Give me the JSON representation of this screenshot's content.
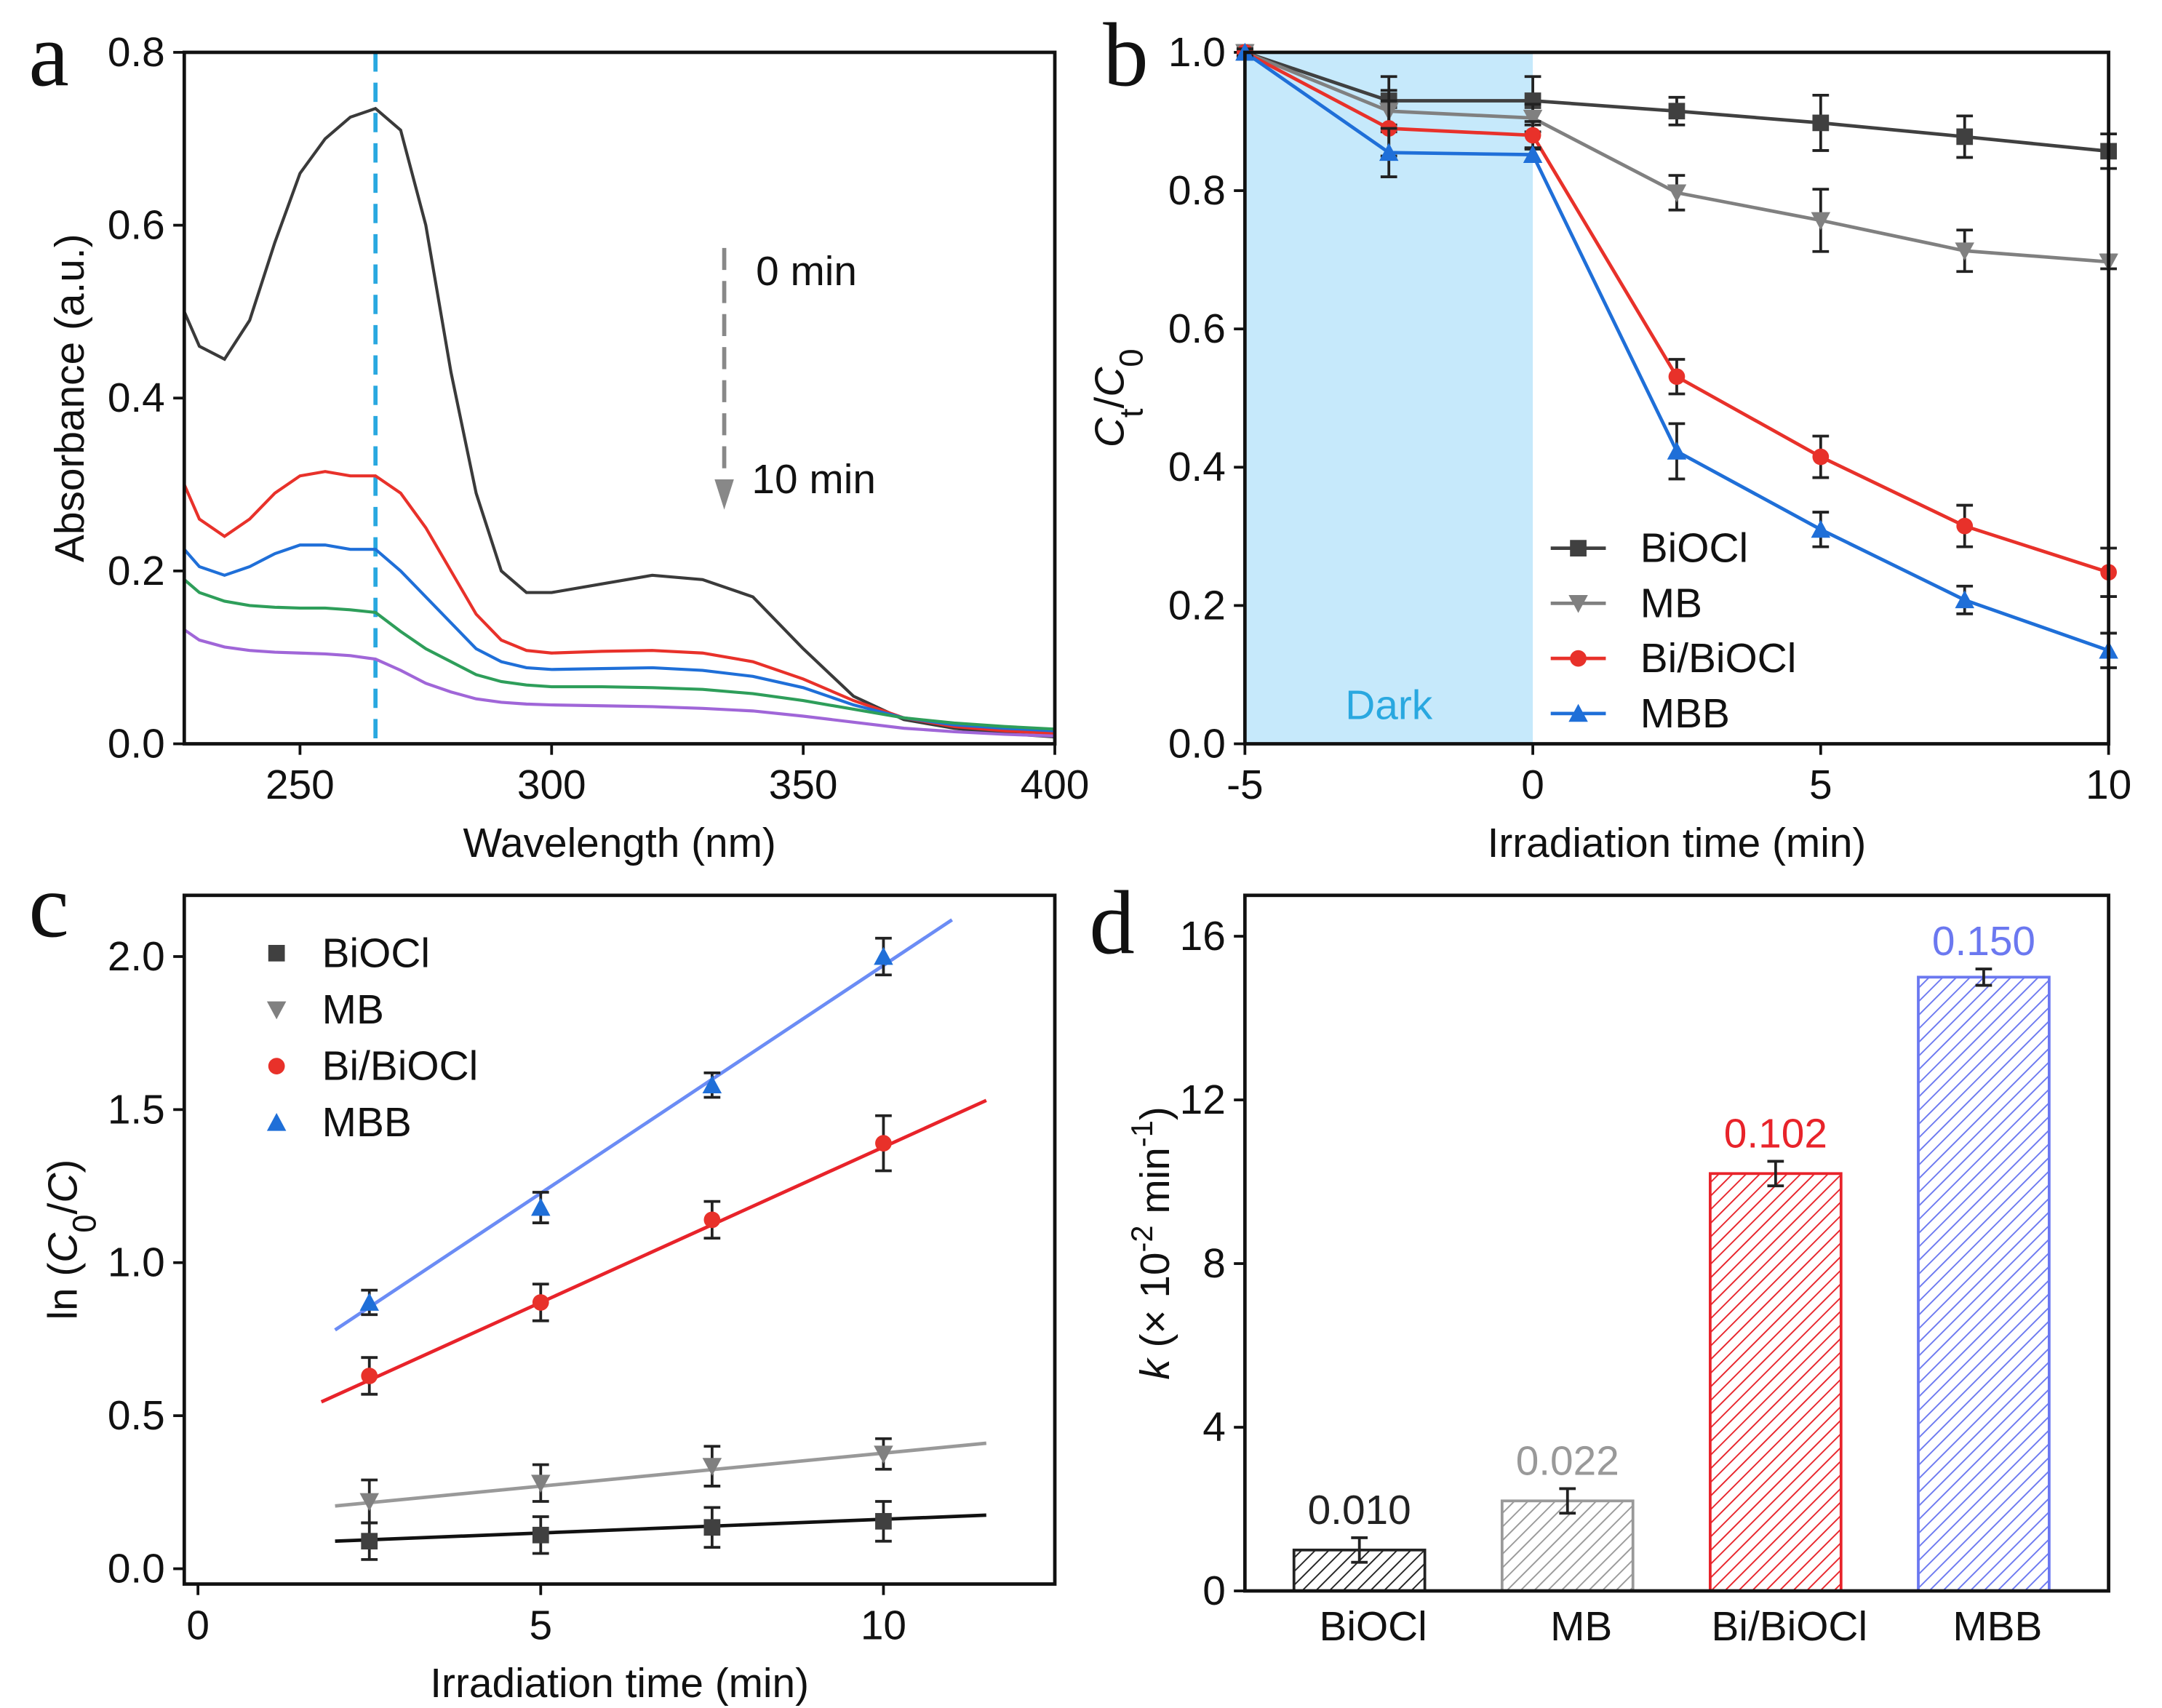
{
  "chart_data": [
    {
      "type": "line",
      "panel_label": "a",
      "xlabel": "Wavelength (nm)",
      "ylabel": "Absorbance (a.u.)",
      "x": [
        227,
        230,
        235,
        240,
        245,
        250,
        255,
        260,
        265,
        270,
        275,
        280,
        285,
        290,
        295,
        300,
        310,
        320,
        330,
        340,
        350,
        360,
        370,
        380,
        390,
        400
      ],
      "series": [
        {
          "color": "#3a3a3a",
          "values": [
            0.5,
            0.46,
            0.445,
            0.49,
            0.58,
            0.66,
            0.7,
            0.725,
            0.735,
            0.71,
            0.6,
            0.43,
            0.29,
            0.2,
            0.175,
            0.175,
            0.185,
            0.195,
            0.19,
            0.17,
            0.11,
            0.055,
            0.028,
            0.018,
            0.012,
            0.008
          ]
        },
        {
          "color": "#e8312a",
          "values": [
            0.3,
            0.26,
            0.24,
            0.26,
            0.29,
            0.31,
            0.315,
            0.31,
            0.31,
            0.29,
            0.25,
            0.2,
            0.15,
            0.12,
            0.108,
            0.105,
            0.107,
            0.108,
            0.105,
            0.095,
            0.075,
            0.05,
            0.03,
            0.02,
            0.015,
            0.012
          ]
        },
        {
          "color": "#1f6fd8",
          "values": [
            0.225,
            0.205,
            0.195,
            0.205,
            0.22,
            0.23,
            0.23,
            0.225,
            0.225,
            0.2,
            0.17,
            0.14,
            0.11,
            0.095,
            0.088,
            0.086,
            0.087,
            0.088,
            0.085,
            0.078,
            0.065,
            0.045,
            0.03,
            0.022,
            0.018,
            0.015
          ]
        },
        {
          "color": "#2e9e5a",
          "values": [
            0.19,
            0.175,
            0.165,
            0.16,
            0.158,
            0.157,
            0.157,
            0.155,
            0.152,
            0.13,
            0.11,
            0.095,
            0.08,
            0.072,
            0.068,
            0.066,
            0.066,
            0.065,
            0.063,
            0.058,
            0.05,
            0.04,
            0.03,
            0.024,
            0.02,
            0.017
          ]
        },
        {
          "color": "#a066d8",
          "values": [
            0.132,
            0.12,
            0.112,
            0.108,
            0.106,
            0.105,
            0.104,
            0.102,
            0.098,
            0.085,
            0.07,
            0.06,
            0.052,
            0.048,
            0.046,
            0.045,
            0.044,
            0.043,
            0.041,
            0.038,
            0.032,
            0.025,
            0.018,
            0.014,
            0.011,
            0.009
          ]
        }
      ],
      "xlim": [
        227,
        400
      ],
      "xticks": [
        250,
        300,
        350,
        400
      ],
      "ylim": [
        0,
        0.8
      ],
      "yticks": [
        {
          "value": 0,
          "label": "0.0"
        },
        0.2,
        0.4,
        0.6,
        0.8
      ],
      "vline": 265,
      "vline_color": "#29a8e0",
      "annotations": [
        "0 min",
        "10 min"
      ]
    },
    {
      "type": "line",
      "panel_label": "b",
      "xlabel": "Irradiation time (min)",
      "ylabel": [
        {
          "text": "C",
          "italic": true
        },
        {
          "text": "t",
          "sub": true
        },
        {
          "text": "/"
        },
        {
          "text": "C",
          "italic": true
        },
        {
          "text": "0",
          "sub": true
        }
      ],
      "x": [
        -5,
        -2.5,
        0,
        2.5,
        5,
        7.5,
        10
      ],
      "series": [
        {
          "name": "BiOCl",
          "color": "#404040",
          "marker": "square",
          "values": [
            1.0,
            0.93,
            0.93,
            0.915,
            0.898,
            0.878,
            0.857
          ],
          "errors": [
            0.005,
            0.035,
            0.035,
            0.02,
            0.04,
            0.03,
            0.025
          ]
        },
        {
          "name": "MB",
          "color": "#808080",
          "marker": "triangle-down",
          "values": [
            1.0,
            0.915,
            0.905,
            0.797,
            0.757,
            0.713,
            0.697
          ],
          "errors": [
            0.005,
            0.03,
            0.02,
            0.025,
            0.045,
            0.03,
            0.01
          ]
        },
        {
          "name": "Bi/BiOCl",
          "color": "#e8312a",
          "marker": "circle",
          "values": [
            1.0,
            0.89,
            0.88,
            0.531,
            0.415,
            0.315,
            0.248
          ],
          "errors": [
            0.005,
            0.04,
            0.02,
            0.025,
            0.03,
            0.03,
            0.035
          ]
        },
        {
          "name": "MBB",
          "color": "#1f6fd8",
          "marker": "triangle-up",
          "values": [
            1.0,
            0.855,
            0.852,
            0.423,
            0.31,
            0.208,
            0.135
          ],
          "errors": [
            0.005,
            0.035,
            0.01,
            0.04,
            0.025,
            0.02,
            0.025
          ]
        }
      ],
      "xlim": [
        -5,
        10
      ],
      "xticks": [
        -5,
        0,
        5,
        10
      ],
      "ylim": [
        0,
        1
      ],
      "yticks": [
        {
          "value": 0,
          "label": "0.0"
        },
        0.2,
        0.4,
        0.6,
        0.8,
        {
          "value": 1,
          "label": "1.0"
        }
      ],
      "shade": [
        -5,
        0
      ],
      "shade_label": "Dark",
      "shade_color": "#c6e9fb",
      "shade_label_color": "#29a8e0",
      "legend": "lower right"
    },
    {
      "type": "scatter",
      "panel_label": "c",
      "xlabel": "Irradiation time (min)",
      "ylabel": [
        {
          "text": "ln ("
        },
        {
          "text": "C",
          "italic": true
        },
        {
          "text": "0",
          "sub": true
        },
        {
          "text": "/"
        },
        {
          "text": "C",
          "italic": true
        },
        {
          "text": ")"
        }
      ],
      "x": [
        2.5,
        5,
        7.5,
        10
      ],
      "series": [
        {
          "name": "BiOCl",
          "color": "#404040",
          "marker": "square",
          "values": [
            0.09,
            0.11,
            0.135,
            0.155
          ],
          "errors": [
            0.06,
            0.06,
            0.065,
            0.065
          ],
          "fit_x": [
            2,
            11.5
          ],
          "fit_y": [
            0.09,
            0.175
          ],
          "fit_color": "#111111"
        },
        {
          "name": "MB",
          "color": "#808080",
          "marker": "triangle-down",
          "values": [
            0.22,
            0.28,
            0.335,
            0.375
          ],
          "errors": [
            0.07,
            0.06,
            0.065,
            0.05
          ],
          "fit_x": [
            2,
            11.5
          ],
          "fit_y": [
            0.205,
            0.41
          ],
          "fit_color": "#999999"
        },
        {
          "name": "Bi/BiOCl",
          "color": "#e8312a",
          "marker": "circle",
          "values": [
            0.63,
            0.87,
            1.14,
            1.39
          ],
          "errors": [
            0.06,
            0.06,
            0.06,
            0.09
          ],
          "fit_x": [
            1.8,
            11.5
          ],
          "fit_y": [
            0.545,
            1.53
          ],
          "fit_color": "#e8232a"
        },
        {
          "name": "MBB",
          "color": "#1f6fd8",
          "marker": "triangle-up",
          "values": [
            0.87,
            1.18,
            1.58,
            2.0
          ],
          "errors": [
            0.04,
            0.05,
            0.04,
            0.06
          ],
          "fit_x": [
            2,
            11
          ],
          "fit_y": [
            0.78,
            2.12
          ],
          "fit_color": "#6b8cf5"
        }
      ],
      "xlim": [
        -0.2,
        12.5
      ],
      "xticks": [
        0,
        5,
        10
      ],
      "ylim": [
        -0.05,
        2.2
      ],
      "yticks": [
        {
          "value": 0,
          "label": "0.0"
        },
        0.5,
        {
          "value": 1,
          "label": "1.0"
        },
        1.5,
        {
          "value": 2,
          "label": "2.0"
        }
      ],
      "legend": "upper left"
    },
    {
      "type": "bar",
      "panel_label": "d",
      "ylabel": [
        {
          "text": "k",
          "italic": true
        },
        {
          "text": " (× 10"
        },
        {
          "text": "-2",
          "sup": true
        },
        {
          "text": " min"
        },
        {
          "text": "-1",
          "sup": true
        },
        {
          "text": ")"
        }
      ],
      "categories": [
        "BiOCl",
        "MB",
        "Bi/BiOCl",
        "MBB"
      ],
      "values": [
        1.0,
        2.2,
        10.2,
        15.0
      ],
      "errors": [
        0.3,
        0.3,
        0.3,
        0.2
      ],
      "value_labels": [
        "0.010",
        "0.022",
        "0.102",
        "0.150"
      ],
      "colors": [
        "#222222",
        "#999999",
        "#e8232a",
        "#6b78f0"
      ],
      "ylim": [
        0,
        17
      ],
      "yticks": [
        0,
        4,
        8,
        12,
        16
      ],
      "hatch": true
    }
  ]
}
